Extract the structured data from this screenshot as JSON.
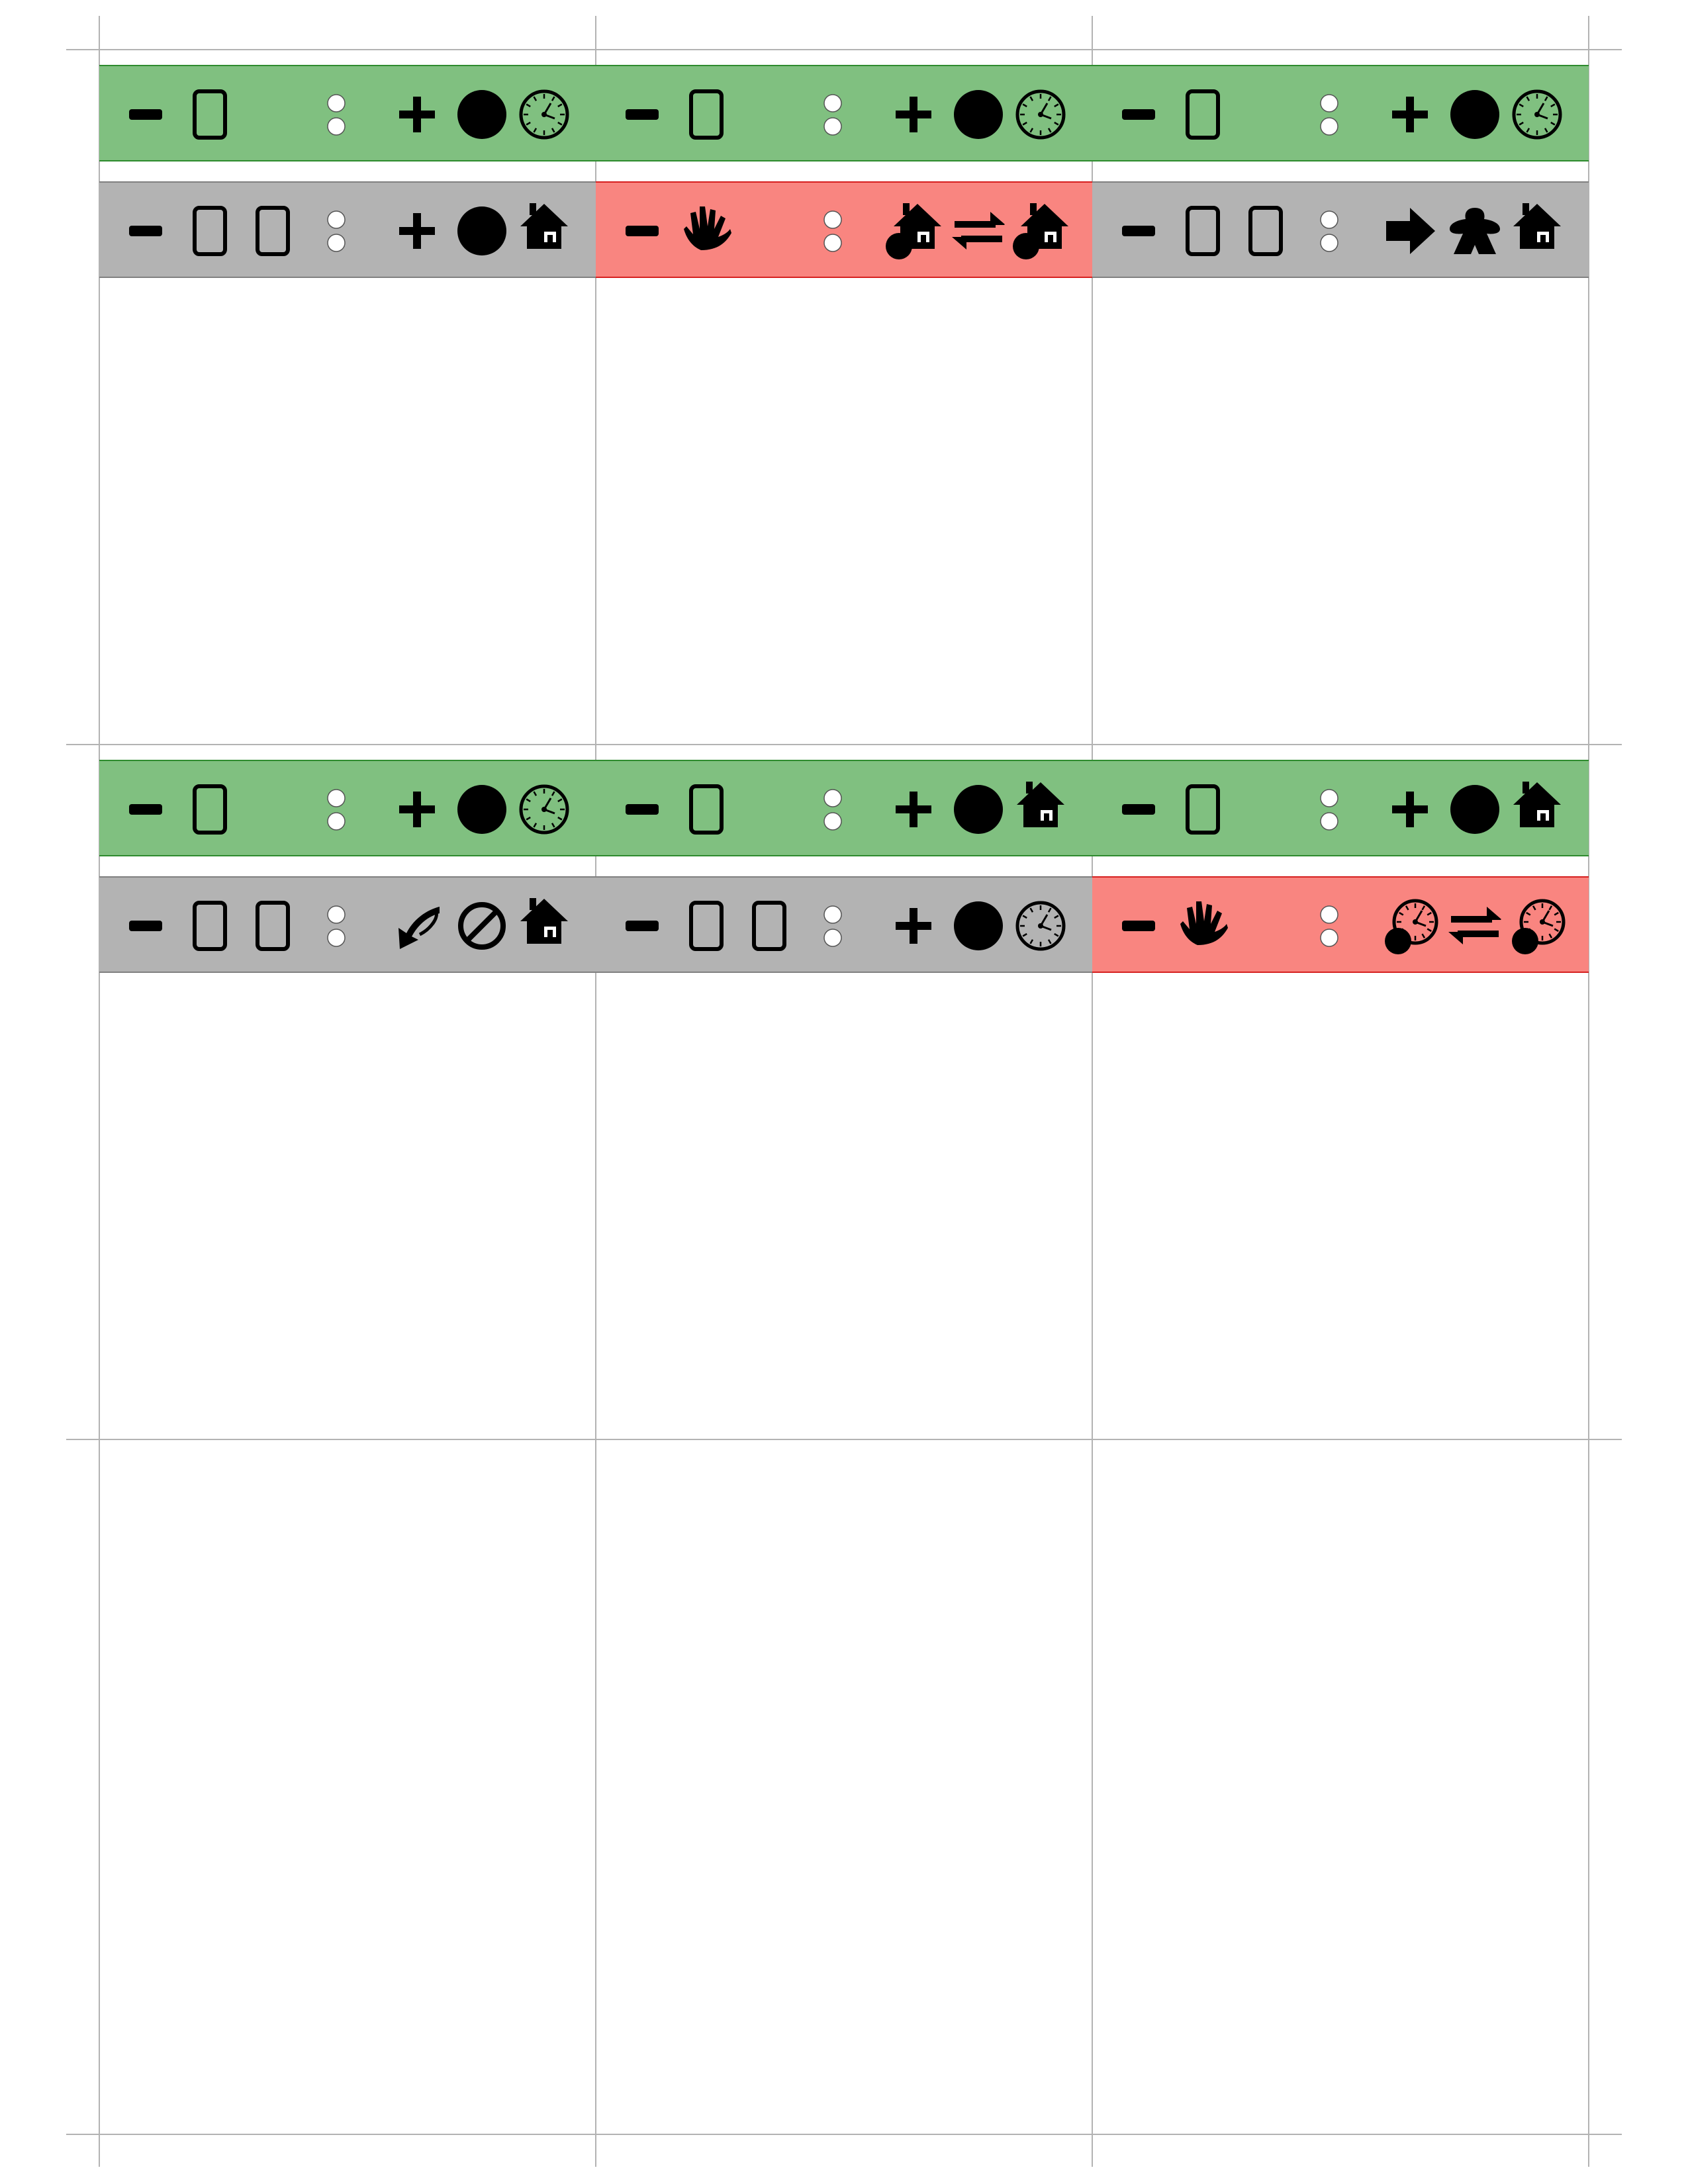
{
  "colors": {
    "green": "#80c080",
    "green_border": "#2e8b2e",
    "gray": "#b3b3b3",
    "gray_border": "#808080",
    "red": "#f98580",
    "red_border": "#d62020",
    "guide": "#b3b3b3",
    "ink": "#000000"
  },
  "cards": [
    {
      "bands": [
        {
          "color": "green",
          "left": [
            "minus-icon",
            "card-icon"
          ],
          "right": [
            "plus-icon",
            "token-icon",
            "clock-icon"
          ]
        },
        {
          "color": "gray",
          "left": [
            "minus-icon",
            "card-icon",
            "card-icon"
          ],
          "right": [
            "plus-icon",
            "token-icon",
            "house-icon"
          ]
        }
      ]
    },
    {
      "bands": [
        {
          "color": "green",
          "left": [
            "minus-icon",
            "card-icon"
          ],
          "right": [
            "plus-icon",
            "token-icon",
            "clock-icon"
          ]
        },
        {
          "color": "red",
          "left": [
            "minus-icon",
            "hand-icon"
          ],
          "right": [
            "house-token-icon",
            "swap-icon",
            "house-token-icon"
          ]
        }
      ]
    },
    {
      "bands": [
        {
          "color": "green",
          "left": [
            "minus-icon",
            "card-icon"
          ],
          "right": [
            "plus-icon",
            "token-icon",
            "clock-icon"
          ]
        },
        {
          "color": "gray",
          "left": [
            "minus-icon",
            "card-icon",
            "card-icon"
          ],
          "right": [
            "arrow-right-icon",
            "meeple-icon",
            "house-icon"
          ]
        }
      ]
    },
    {
      "bands": [
        {
          "color": "green",
          "left": [
            "minus-icon",
            "card-icon"
          ],
          "right": [
            "plus-icon",
            "token-icon",
            "clock-icon"
          ]
        },
        {
          "color": "gray",
          "left": [
            "minus-icon",
            "card-icon",
            "card-icon"
          ],
          "right": [
            "curved-arrow-icon",
            "forbidden-icon",
            "house-icon"
          ]
        }
      ]
    },
    {
      "bands": [
        {
          "color": "green",
          "left": [
            "minus-icon",
            "card-icon"
          ],
          "right": [
            "plus-icon",
            "token-icon",
            "house-icon"
          ]
        },
        {
          "color": "gray",
          "left": [
            "minus-icon",
            "card-icon",
            "card-icon"
          ],
          "right": [
            "plus-icon",
            "token-icon",
            "clock-icon"
          ]
        }
      ]
    },
    {
      "bands": [
        {
          "color": "green",
          "left": [
            "minus-icon",
            "card-icon"
          ],
          "right": [
            "plus-icon",
            "token-icon",
            "house-icon"
          ]
        },
        {
          "color": "red",
          "left": [
            "minus-icon",
            "hand-icon"
          ],
          "right": [
            "clock-token-icon",
            "swap-icon",
            "clock-token-icon"
          ]
        }
      ]
    },
    {
      "bands": []
    },
    {
      "bands": []
    },
    {
      "bands": []
    }
  ]
}
